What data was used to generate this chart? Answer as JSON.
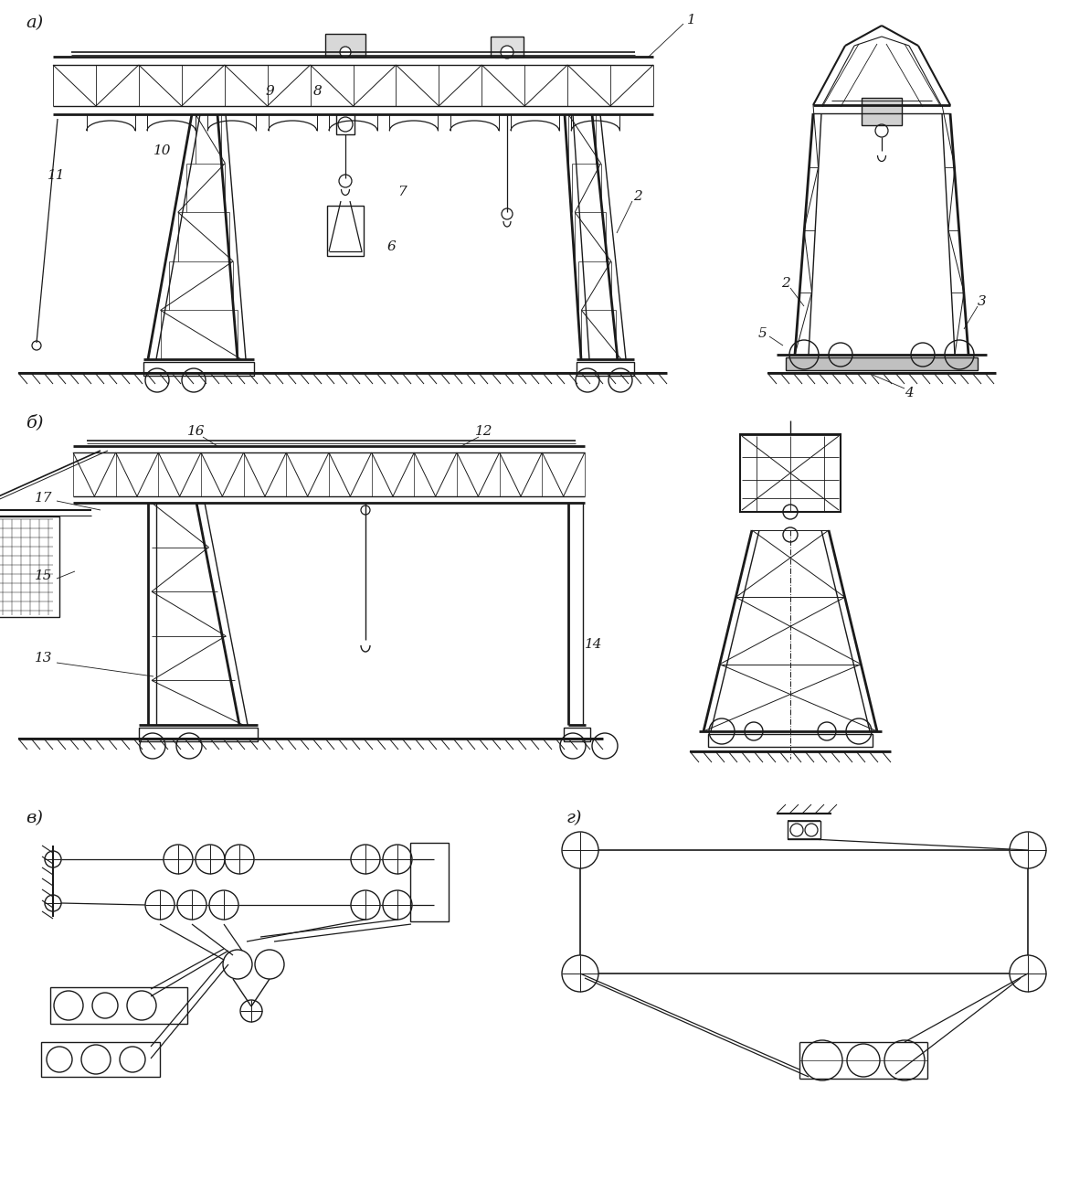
{
  "bg_color": "#ffffff",
  "line_color": "#1a1a1a",
  "font_size_label": 14,
  "font_size_num": 11,
  "sections": {
    "a_label": "а)",
    "b_label": "б)",
    "v_label": "в)",
    "g_label": "г)"
  }
}
